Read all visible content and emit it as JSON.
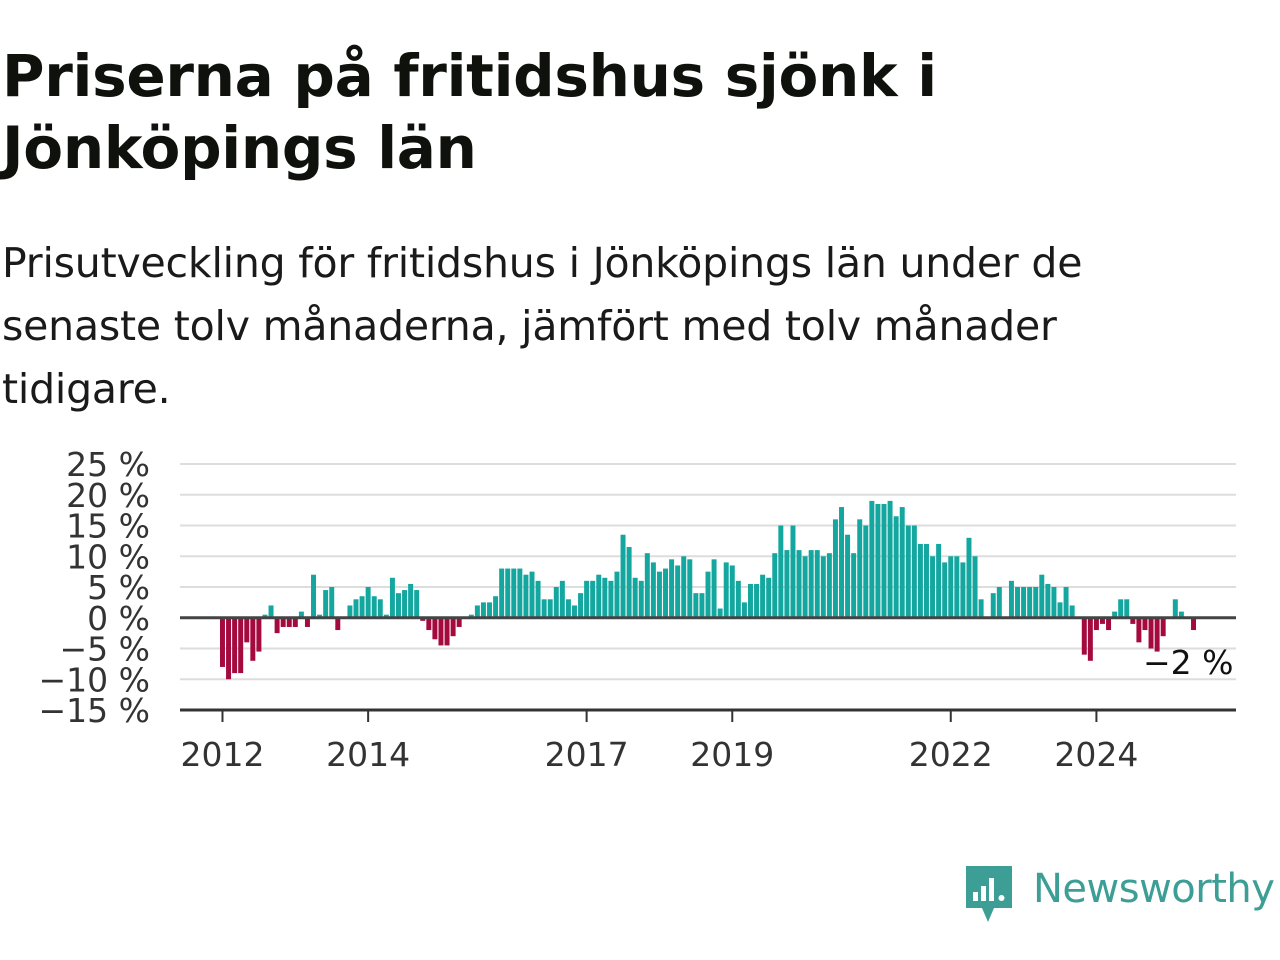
{
  "title": "Priserna på fritidshus sjönk i Jönköpings län",
  "subtitle": "Prisutveckling för fritidshus i Jönköpings län under de senaste tolv månaderna, jämfört med tolv månader tidigare.",
  "brand": {
    "name": "Newsworthy",
    "color": "#3d9e95",
    "icon": "newsworthy-logo-icon"
  },
  "colors": {
    "positive": "#14a7a0",
    "negative": "#a50a3e",
    "grid": "#dddddd",
    "zero_line": "#444444",
    "axis": "#333333"
  },
  "chart_data": {
    "type": "bar",
    "title": "Priserna på fritidshus sjönk i Jönköpings län",
    "subtitle": "Prisutveckling för fritidshus i Jönköpings län under de senaste tolv månaderna, jämfört med tolv månader tidigare.",
    "xlabel": "",
    "ylabel": "",
    "unit": "%",
    "ylim": [
      -15,
      25
    ],
    "yticks": [
      -15,
      -10,
      -5,
      0,
      5,
      10,
      15,
      20,
      25
    ],
    "ytick_labels": [
      "−15 %",
      "−10 %",
      "−5 %",
      "0 %",
      "5 %",
      "10 %",
      "15 %",
      "20 %",
      "25 %"
    ],
    "xlim": [
      "2011-06",
      "2025-12"
    ],
    "xticks": [
      "2012-01",
      "2014-01",
      "2017-01",
      "2019-01",
      "2022-01",
      "2024-01"
    ],
    "xtick_labels": [
      "2012",
      "2014",
      "2017",
      "2019",
      "2022",
      "2024"
    ],
    "grid": true,
    "legend": "none",
    "start_month": "2012-01",
    "values": [
      -8,
      -10,
      -9,
      -9,
      -4,
      -7,
      -5.5,
      0.5,
      2,
      -2.5,
      -1.5,
      -1.5,
      -1.5,
      1,
      -1.5,
      7,
      0.5,
      4.5,
      5,
      -2,
      0,
      2,
      3,
      3.5,
      5,
      3.5,
      3,
      0.5,
      6.5,
      4,
      4.5,
      5.5,
      4.5,
      -0.5,
      -2,
      -3.5,
      -4.5,
      -4.5,
      -3,
      -1.5,
      0,
      0.5,
      2,
      2.5,
      2.5,
      3.5,
      8,
      8,
      8,
      8,
      7,
      7.5,
      6,
      3,
      3,
      5,
      6,
      3,
      2,
      4,
      6,
      6,
      7,
      6.5,
      6,
      7.5,
      13.5,
      11.5,
      6.5,
      6,
      10.5,
      9,
      7.5,
      8,
      9.5,
      8.5,
      10,
      9.5,
      4,
      4,
      7.5,
      9.5,
      1.5,
      9,
      8.5,
      6,
      2.5,
      5.5,
      5.5,
      7,
      6.5,
      10.5,
      15,
      11,
      15,
      11,
      10,
      11,
      11,
      10,
      10.5,
      16,
      18,
      13.5,
      10.5,
      16,
      15,
      19,
      18.5,
      18.5,
      19,
      16.5,
      18,
      15,
      15,
      12,
      12,
      10,
      12,
      9,
      10,
      10,
      9,
      13,
      10,
      3,
      0,
      4,
      5,
      0,
      6,
      5,
      5,
      5,
      5,
      7,
      5.5,
      5,
      2.5,
      5,
      2,
      0,
      -6,
      -7,
      -2,
      -1,
      -2,
      1,
      3,
      3,
      -1,
      -4,
      -2,
      -5,
      -5.5,
      -3,
      0,
      3,
      1,
      0,
      -2
    ],
    "annotation": {
      "label": "−2 %",
      "month": "2025-05",
      "value": -2
    }
  }
}
